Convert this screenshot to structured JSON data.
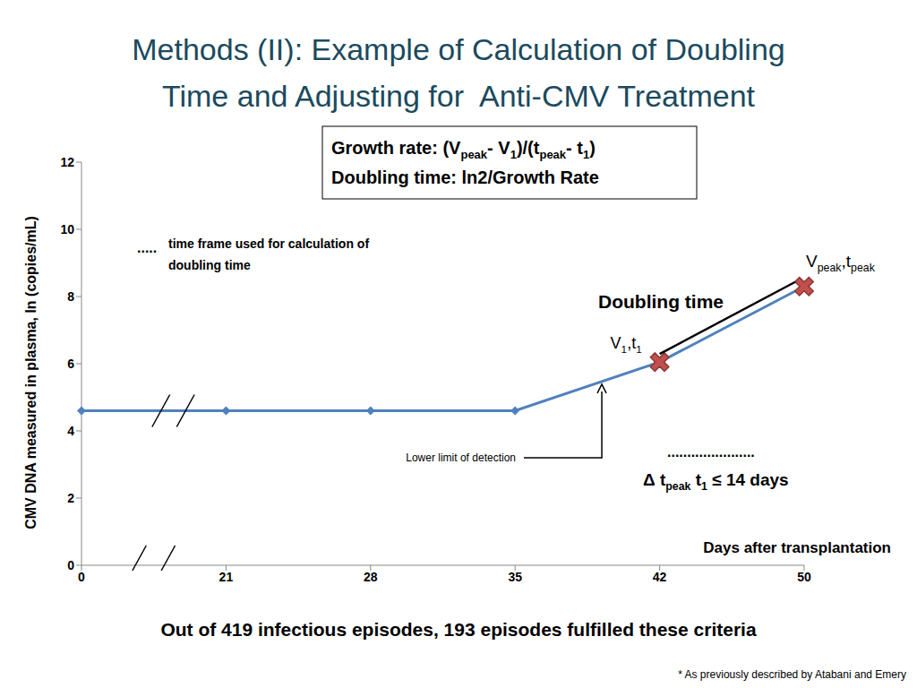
{
  "chart_data": {
    "type": "line",
    "title": [
      "Methods (II): Example of Calculation of Doubling",
      "Time and Adjusting for  Anti-CMV Treatment"
    ],
    "xlabel": "Days after transplantation",
    "ylabel": "CMV DNA measured in plasma, ln (copies/mL)",
    "categories": [
      "0",
      "21",
      "28",
      "35",
      "42",
      "50"
    ],
    "series": [
      {
        "values": [
          4.6,
          4.6,
          4.6,
          4.6,
          6.05,
          8.3
        ],
        "color": "#4f81bd",
        "marker": "diamond",
        "line_style": "solid"
      },
      {
        "values": [
          null,
          null,
          null,
          null,
          6.05,
          8.3
        ],
        "color": "#c0504d",
        "marker": "x",
        "line_style": "none"
      }
    ],
    "ylim": [
      0,
      12
    ],
    "yticks": [
      0,
      2,
      4,
      6,
      8,
      10,
      12
    ],
    "grid": false,
    "formula": [
      [
        "Growth rate: (V",
        "peak",
        "- V",
        "1",
        ")/(t",
        "peak",
        "- t",
        "1",
        ")"
      ],
      [
        "Doubling time: ln2/Growth Rate"
      ]
    ],
    "annotations": {
      "legend_dots": ".....",
      "legend_text": [
        "time frame used for calculation of",
        "doubling time"
      ],
      "doubling_time": "Doubling time",
      "point_labels": [
        [
          "V",
          "1",
          ",t",
          "1"
        ],
        [
          "V",
          "peak",
          ",t",
          "peak"
        ]
      ],
      "lower_limit": "Lower limit of detection",
      "window_dots": "......................",
      "window_text": [
        "Δ t",
        "peak",
        " t",
        "1",
        " ≤ 14 days"
      ]
    },
    "footer": "Out of 419 infectious episodes, 193 episodes fulfilled these criteria",
    "footnote": "* As previously described by Atabani and Emery"
  }
}
